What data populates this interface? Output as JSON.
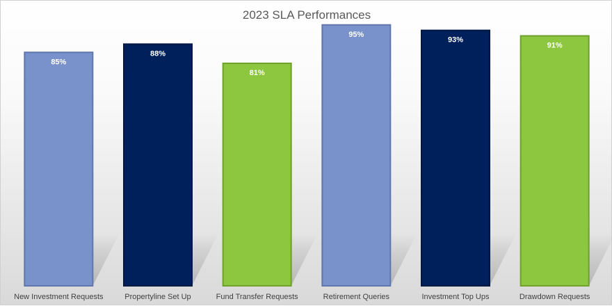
{
  "chart_data": {
    "type": "bar",
    "title": "2023 SLA Performances",
    "categories": [
      "New Investment Requests",
      "Propertyline Set Up",
      "Fund Transfer Requests",
      "Retirement Queries",
      "Investment Top Ups",
      "Drawdown Requests"
    ],
    "values": [
      85,
      88,
      81,
      95,
      93,
      91
    ],
    "data_labels": [
      "85%",
      "88%",
      "81%",
      "95%",
      "93%",
      "91%"
    ],
    "unit": "%",
    "ylim": [
      0,
      100
    ],
    "grid": false,
    "legend": "none",
    "bar_colors": [
      "#7a92cb",
      "#00205b",
      "#8dc63f",
      "#7a92cb",
      "#00205b",
      "#8dc63f"
    ],
    "bar_edge_colors": [
      "#5f76ad",
      "#001742",
      "#6ea02b",
      "#5f76ad",
      "#001742",
      "#6ea02b"
    ]
  }
}
